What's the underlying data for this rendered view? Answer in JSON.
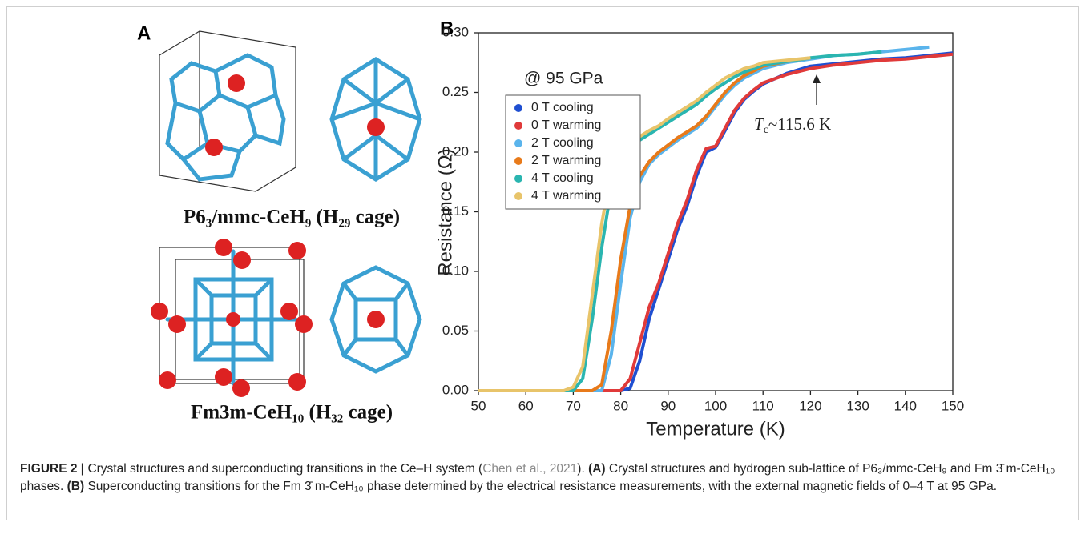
{
  "panel_a": {
    "label": "A",
    "structure_1": "P6₃/mmc-CeH₉ (H₂₉ cage)",
    "structure_2": "Fm3m-CeH₁₀ (H₃₂ cage)"
  },
  "chart_data": {
    "type": "line",
    "panel_label": "B",
    "annotation": "@ 95 GPa",
    "tc_annotation": {
      "symbol": "T",
      "subscript": "c",
      "text": "~115.6 K"
    },
    "xlabel": "Temperature (K)",
    "ylabel": "Resistance (Ω)",
    "xlim": [
      50,
      150
    ],
    "xticks": [
      50,
      60,
      70,
      80,
      90,
      100,
      110,
      120,
      130,
      140,
      150
    ],
    "ylim": [
      0,
      0.3
    ],
    "yticks": [
      {
        "value": 0,
        "label": "0.00"
      },
      0.05,
      {
        "value": 0.1,
        "label": "0.10"
      },
      0.15,
      {
        "value": 0.2,
        "label": "0.20"
      },
      0.25,
      {
        "value": 0.3,
        "label": "0.30"
      }
    ],
    "x": [
      50,
      55,
      60,
      65,
      68,
      70,
      72,
      74,
      76,
      78,
      80,
      82,
      84,
      86,
      88,
      90,
      92,
      94,
      96,
      98,
      100,
      102,
      104,
      106,
      108,
      110,
      115,
      120,
      125,
      130,
      135,
      140,
      145,
      150
    ],
    "series": [
      {
        "name": "0 T cooling",
        "color": "#1f4fd1",
        "values": [
          0,
          0,
          0,
          0,
          0,
          0,
          0,
          0,
          0,
          0,
          0,
          0.002,
          0.025,
          0.06,
          0.085,
          0.11,
          0.135,
          0.155,
          0.18,
          0.2,
          0.204,
          0.218,
          0.233,
          0.244,
          0.251,
          0.257,
          0.266,
          0.272,
          0.274,
          0.276,
          0.278,
          0.279,
          0.281,
          0.283
        ]
      },
      {
        "name": "0 T warming",
        "color": "#e03a3a",
        "values": [
          0,
          0,
          0,
          0,
          0,
          0,
          0,
          0,
          0,
          0,
          0,
          0.01,
          0.04,
          0.07,
          0.09,
          0.115,
          0.14,
          0.16,
          0.185,
          0.203,
          0.205,
          0.22,
          0.235,
          0.245,
          0.252,
          0.258,
          0.265,
          0.27,
          0.273,
          0.275,
          0.277,
          0.278,
          0.28,
          0.282
        ]
      },
      {
        "name": "2 T cooling",
        "color": "#5ab4ec",
        "values": [
          0,
          0,
          0,
          0,
          0,
          0,
          0,
          0,
          0,
          0.03,
          0.09,
          0.145,
          0.175,
          0.19,
          0.198,
          0.204,
          0.21,
          0.215,
          0.22,
          0.228,
          0.238,
          0.248,
          0.256,
          0.262,
          0.266,
          0.27,
          0.275,
          0.278,
          0.281,
          0.282,
          0.284,
          0.286,
          0.288,
          null
        ]
      },
      {
        "name": "2 T warming",
        "color": "#e87a1a",
        "values": [
          0,
          0,
          0,
          0,
          0,
          0,
          0,
          0,
          0.005,
          0.05,
          0.11,
          0.155,
          0.18,
          0.192,
          0.2,
          0.206,
          0.212,
          0.217,
          0.222,
          0.23,
          0.24,
          0.25,
          0.258,
          0.264,
          0.268,
          0.272,
          0.276,
          0.279,
          null,
          null,
          null,
          null,
          null,
          null
        ]
      },
      {
        "name": "4 T cooling",
        "color": "#2ab5b0",
        "values": [
          0,
          0,
          0,
          0,
          0,
          0,
          0.01,
          0.06,
          0.12,
          0.17,
          0.195,
          0.203,
          0.21,
          0.215,
          0.22,
          0.225,
          0.23,
          0.235,
          0.24,
          0.247,
          0.253,
          0.258,
          0.263,
          0.267,
          0.27,
          0.273,
          0.276,
          0.279,
          0.281,
          0.282,
          0.284,
          null,
          null,
          null
        ]
      },
      {
        "name": "4 T warming",
        "color": "#e8c46a",
        "values": [
          0,
          0,
          0,
          0,
          0,
          0.003,
          0.02,
          0.08,
          0.14,
          0.185,
          0.2,
          0.207,
          0.213,
          0.218,
          0.222,
          0.228,
          0.233,
          0.238,
          0.243,
          0.25,
          0.256,
          0.262,
          0.266,
          0.27,
          0.272,
          0.275,
          0.277,
          0.279,
          null,
          null,
          null,
          null,
          null,
          null
        ]
      }
    ]
  },
  "caption": {
    "label": "FIGURE 2 |",
    "text_1": "Crystal structures and superconducting transitions in the Ce–H system (",
    "citation": "Chen et al., 2021",
    "text_2": ").",
    "part_a_label": "(A)",
    "part_a": "Crystal structures and hydrogen sub-lattice of P6₃/mmc-CeH₉ and Fm 3̄ m-CeH₁₀ phases.",
    "part_b_label": "(B)",
    "part_b": "Superconducting transitions for the Fm 3̄ m-CeH₁₀ phase determined by the electrical resistance measurements, with the external magnetic fields of 0–4 T at 95 GPa."
  }
}
